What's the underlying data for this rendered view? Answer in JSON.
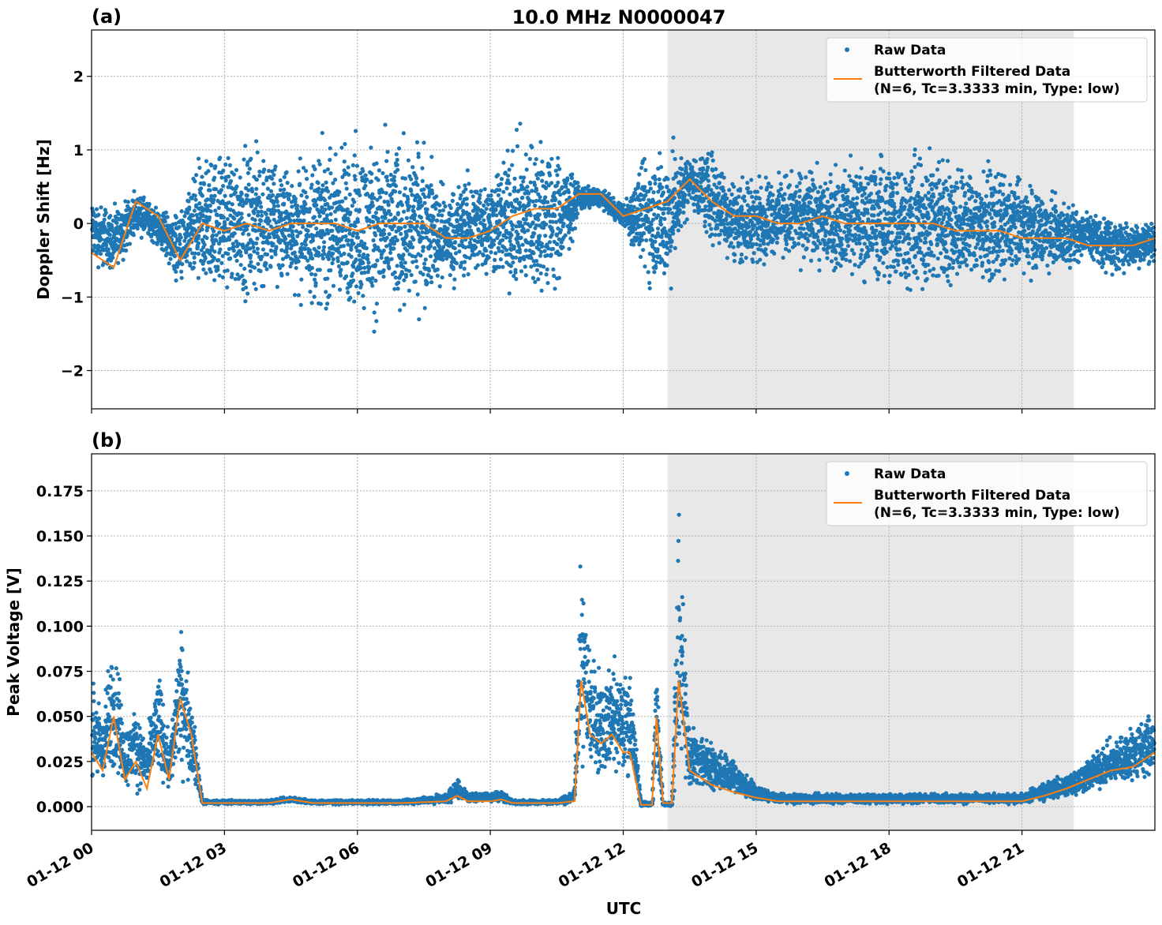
{
  "title": "10.0 MHz N0000047",
  "xlabel": "UTC",
  "colors": {
    "raw": "#1f77b4",
    "filtered": "#ff7f0e",
    "shade": "#e8e8e8"
  },
  "chart_data": [
    {
      "panel_label": "(a)",
      "type": "scatter+line",
      "ylabel": "Doppler Shift [Hz]",
      "xlim_hours": [
        0,
        24
      ],
      "ylim": [
        -2.52,
        2.63
      ],
      "yticks": [
        -2,
        -1,
        0,
        1,
        2
      ],
      "ytick_labels": [
        "−2",
        "−1",
        "0",
        "1",
        "2"
      ],
      "xticks_hours": [
        0,
        3,
        6,
        9,
        12,
        15,
        18,
        21
      ],
      "xtick_labels": [
        "01-12 00",
        "01-12 03",
        "01-12 06",
        "01-12 09",
        "01-12 12",
        "01-12 15",
        "01-12 18",
        "01-12 21"
      ],
      "grid": true,
      "shaded_span_hours": [
        13.0,
        22.17
      ],
      "legend": {
        "placement": "upper right",
        "entries": [
          "Raw Data",
          "Butterworth Filtered Data",
          "(N=6, Tc=3.3333 min, Type: low)"
        ]
      },
      "x_hours": [
        0,
        0.5,
        1,
        1.5,
        2,
        2.5,
        3,
        3.5,
        4,
        4.5,
        5,
        5.5,
        6,
        6.5,
        7,
        7.5,
        8,
        8.5,
        9,
        9.5,
        10,
        10.5,
        11,
        11.5,
        12,
        12.5,
        13,
        13.5,
        14,
        14.5,
        15,
        15.5,
        16,
        16.5,
        17,
        17.5,
        18,
        18.5,
        19,
        19.5,
        20,
        20.5,
        21,
        21.5,
        22,
        22.5,
        23,
        23.5,
        24
      ],
      "series": [
        {
          "name": "Butterworth Filtered Data",
          "values": [
            -0.4,
            -0.6,
            0.3,
            0.1,
            -0.5,
            0.0,
            -0.1,
            0.0,
            -0.1,
            0.0,
            0.0,
            0.0,
            -0.1,
            0.0,
            0.0,
            0.0,
            -0.2,
            -0.2,
            -0.1,
            0.1,
            0.2,
            0.2,
            0.4,
            0.4,
            0.1,
            0.2,
            0.3,
            0.6,
            0.3,
            0.1,
            0.1,
            0.0,
            0.0,
            0.1,
            0.0,
            0.0,
            0.0,
            0.0,
            0.0,
            -0.1,
            -0.1,
            -0.1,
            -0.2,
            -0.2,
            -0.2,
            -0.3,
            -0.3,
            -0.3,
            -0.2
          ]
        },
        {
          "name": "Raw Data",
          "low": [
            -0.7,
            -0.8,
            -0.2,
            -0.4,
            -1.0,
            -1.2,
            -1.2,
            -1.3,
            -1.3,
            -1.1,
            -1.4,
            -1.5,
            -1.6,
            -1.6,
            -1.6,
            -1.4,
            -1.0,
            -1.0,
            -0.9,
            -1.3,
            -1.4,
            -1.3,
            0.1,
            0.2,
            -0.1,
            -1.0,
            -1.3,
            0.2,
            -0.5,
            -0.7,
            -0.7,
            -0.6,
            -0.7,
            -0.8,
            -0.9,
            -1.0,
            -1.1,
            -1.2,
            -1.2,
            -1.1,
            -1.0,
            -1.0,
            -0.9,
            -0.8,
            -0.7,
            -0.6,
            -0.8,
            -0.7,
            -0.6
          ],
          "high": [
            0.5,
            0.3,
            0.5,
            0.3,
            0.3,
            1.2,
            1.3,
            1.3,
            1.4,
            1.0,
            1.3,
            1.4,
            1.5,
            1.4,
            1.5,
            1.4,
            0.6,
            0.9,
            0.9,
            1.4,
            1.6,
            1.3,
            0.6,
            0.5,
            0.3,
            1.2,
            1.4,
            1.0,
            1.2,
            0.8,
            0.8,
            0.8,
            0.9,
            0.9,
            1.0,
            1.1,
            1.2,
            1.2,
            1.3,
            1.1,
            1.0,
            0.9,
            0.8,
            0.6,
            0.4,
            0.3,
            0.2,
            0.1,
            0.1
          ]
        }
      ]
    },
    {
      "panel_label": "(b)",
      "type": "scatter+line",
      "ylabel": "Peak Voltage [V]",
      "xlim_hours": [
        0,
        24
      ],
      "ylim": [
        -0.0131,
        0.1955
      ],
      "yticks": [
        0,
        0.025,
        0.05,
        0.075,
        0.1,
        0.125,
        0.15,
        0.175
      ],
      "ytick_labels": [
        "0.000",
        "0.025",
        "0.050",
        "0.075",
        "0.100",
        "0.125",
        "0.150",
        "0.175"
      ],
      "xticks_hours": [
        0,
        3,
        6,
        9,
        12,
        15,
        18,
        21
      ],
      "xtick_labels": [
        "01-12 00",
        "01-12 03",
        "01-12 06",
        "01-12 09",
        "01-12 12",
        "01-12 15",
        "01-12 18",
        "01-12 21"
      ],
      "grid": true,
      "shaded_span_hours": [
        13.0,
        22.17
      ],
      "legend": {
        "placement": "upper right",
        "entries": [
          "Raw Data",
          "Butterworth Filtered Data",
          "(N=6, Tc=3.3333 min, Type: low)"
        ]
      },
      "x_hours": [
        0,
        0.25,
        0.5,
        0.75,
        1,
        1.25,
        1.5,
        1.75,
        2,
        2.25,
        2.5,
        3,
        4,
        4.5,
        5,
        6,
        7,
        8,
        8.25,
        8.5,
        9,
        9.25,
        9.5,
        10,
        10.5,
        10.9,
        11.05,
        11.25,
        11.5,
        11.75,
        12,
        12.15,
        12.4,
        12.65,
        12.75,
        12.9,
        13.1,
        13.25,
        13.5,
        14,
        14.5,
        15,
        15.5,
        17,
        19,
        21,
        21.5,
        22,
        22.5,
        23,
        23.5,
        24
      ],
      "series": [
        {
          "name": "Butterworth Filtered Data",
          "values": [
            0.03,
            0.02,
            0.05,
            0.015,
            0.025,
            0.01,
            0.04,
            0.015,
            0.06,
            0.04,
            0.002,
            0.002,
            0.002,
            0.004,
            0.002,
            0.002,
            0.002,
            0.003,
            0.006,
            0.003,
            0.003,
            0.004,
            0.002,
            0.002,
            0.002,
            0.003,
            0.07,
            0.04,
            0.035,
            0.04,
            0.03,
            0.03,
            0.001,
            0.001,
            0.05,
            0.002,
            0.002,
            0.07,
            0.02,
            0.012,
            0.008,
            0.005,
            0.003,
            0.003,
            0.003,
            0.003,
            0.006,
            0.01,
            0.015,
            0.02,
            0.022,
            0.03
          ]
        },
        {
          "name": "Raw Data",
          "low": [
            0.005,
            0.005,
            0.005,
            0.005,
            0.005,
            0.005,
            0.005,
            0.005,
            0.01,
            0.008,
            0.001,
            0.001,
            0.001,
            0.002,
            0.001,
            0.001,
            0.001,
            0.001,
            0.003,
            0.002,
            0.002,
            0.002,
            0.001,
            0.001,
            0.001,
            0.001,
            0.01,
            0.01,
            0.01,
            0.01,
            0.01,
            0.01,
            0.0,
            0.0,
            0.005,
            0.0,
            0.0,
            0.005,
            0.005,
            0.005,
            0.003,
            0.003,
            0.001,
            0.001,
            0.001,
            0.001,
            0.002,
            0.003,
            0.005,
            0.008,
            0.008,
            0.01
          ],
          "high": [
            0.08,
            0.06,
            0.11,
            0.05,
            0.06,
            0.04,
            0.09,
            0.04,
            0.11,
            0.07,
            0.004,
            0.004,
            0.004,
            0.006,
            0.004,
            0.004,
            0.004,
            0.008,
            0.018,
            0.008,
            0.009,
            0.01,
            0.004,
            0.004,
            0.004,
            0.01,
            0.16,
            0.1,
            0.08,
            0.09,
            0.08,
            0.09,
            0.003,
            0.003,
            0.1,
            0.003,
            0.003,
            0.18,
            0.05,
            0.04,
            0.03,
            0.012,
            0.008,
            0.008,
            0.008,
            0.008,
            0.015,
            0.02,
            0.03,
            0.04,
            0.05,
            0.06
          ]
        }
      ]
    }
  ]
}
